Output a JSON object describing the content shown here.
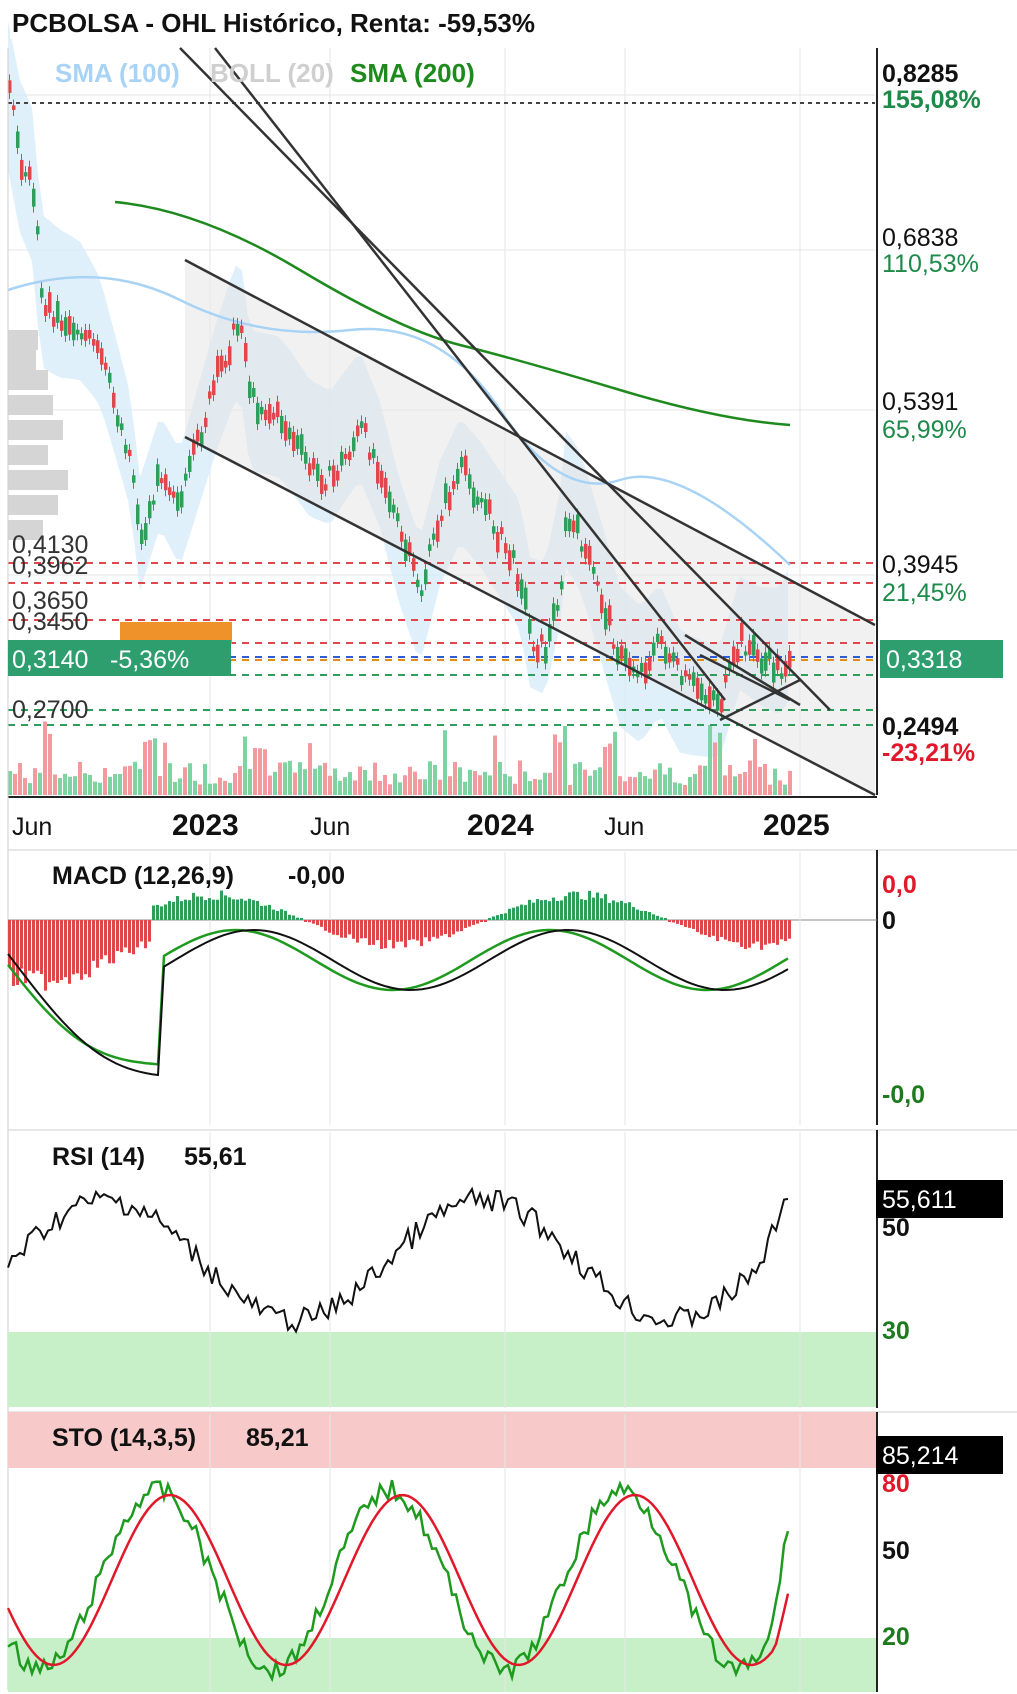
{
  "title": "PCBOLSA - OHL Histórico, Renta: -59,53%",
  "legend": [
    {
      "label": "SMA (100)",
      "color": "#a9d3f5"
    },
    {
      "label": "BOLL (20)",
      "color": "#cfcfcf"
    },
    {
      "label": "SMA (200)",
      "color": "#1e8a1e"
    }
  ],
  "colors": {
    "up": "#2e9e5b",
    "down": "#e0474c",
    "green": "#1a7a1a",
    "red": "#e0182a",
    "price_box": "#2e9e6f",
    "fill_up": "#c8f0c8",
    "fill_down": "#f7c9c9"
  },
  "right_axis": [
    {
      "price": "0,8285",
      "pct": "155,08%",
      "pct_color": "#1e8a4a",
      "bold": true
    },
    {
      "price": "0,6838",
      "pct": "110,53%",
      "pct_color": "#1e8a4a",
      "bold": false
    },
    {
      "price": "0,5391",
      "pct": "65,99%",
      "pct_color": "#1e8a4a",
      "bold": false
    },
    {
      "price": "0,3945",
      "pct": "21,45%",
      "pct_color": "#1e8a4a",
      "bold": false
    },
    {
      "price": "0,2494",
      "pct": "-23,21%",
      "pct_color": "#e0182a",
      "bold": true
    }
  ],
  "current_price": "0,3318",
  "left_levels": [
    "0,4130",
    "0,3962",
    "0,3650",
    "0,3450",
    "0,2700"
  ],
  "last_price_box": {
    "price": "0,3140",
    "pct": "-5,36%"
  },
  "x_axis": [
    {
      "label": "Jun",
      "bold": false
    },
    {
      "label": "2023",
      "bold": true
    },
    {
      "label": "Jun",
      "bold": false
    },
    {
      "label": "2024",
      "bold": true
    },
    {
      "label": "Jun",
      "bold": false
    },
    {
      "label": "2025",
      "bold": true
    }
  ],
  "macd": {
    "label": "MACD (12,26,9)",
    "value": "-0,00",
    "axis": [
      "0,0",
      "0",
      "-0,0"
    ]
  },
  "rsi": {
    "label": "RSI (14)",
    "value": "55,61",
    "badge": "55,611",
    "axis": [
      "50",
      "30"
    ]
  },
  "sto": {
    "label": "STO (14,3,5)",
    "value": "85,21",
    "badge": "85,214",
    "axis": [
      "80",
      "50",
      "20"
    ]
  },
  "chart_data": [
    {
      "type": "candlestick",
      "title": "PCBOLSA - OHL Histórico, Renta: -59,53%",
      "x_range": [
        "2022-04",
        "2025-01"
      ],
      "ylim": [
        0.2,
        0.86
      ],
      "close_approx": {
        "x": [
          "2022-04",
          "2022-05",
          "2022-06",
          "2022-07",
          "2022-08",
          "2022-09",
          "2022-10",
          "2022-11",
          "2022-12",
          "2023-01",
          "2023-02",
          "2023-03",
          "2023-04",
          "2023-05",
          "2023-06",
          "2023-07",
          "2023-08",
          "2023-09",
          "2023-10",
          "2023-11",
          "2023-12",
          "2024-01",
          "2024-02",
          "2024-03",
          "2024-04",
          "2024-05",
          "2024-06",
          "2024-07",
          "2024-08",
          "2024-09",
          "2024-10",
          "2024-11",
          "2024-12",
          "2025-01"
        ],
        "y": [
          0.8,
          0.74,
          0.64,
          0.6,
          0.56,
          0.5,
          0.42,
          0.46,
          0.48,
          0.52,
          0.56,
          0.6,
          0.54,
          0.5,
          0.47,
          0.46,
          0.48,
          0.5,
          0.44,
          0.4,
          0.44,
          0.48,
          0.44,
          0.42,
          0.38,
          0.34,
          0.4,
          0.44,
          0.38,
          0.34,
          0.3,
          0.3,
          0.28,
          0.3318
        ]
      },
      "sma200_approx": {
        "x": [
          "2022-08",
          "2022-12",
          "2023-06",
          "2023-12",
          "2024-06",
          "2024-12"
        ],
        "y": [
          0.7,
          0.68,
          0.63,
          0.58,
          0.56,
          0.54
        ]
      },
      "levels": [
        0.413,
        0.3962,
        0.365,
        0.345,
        0.314,
        0.27
      ],
      "right_ticks": [
        0.8285,
        0.6838,
        0.5391,
        0.3945,
        0.2494
      ],
      "last": 0.3318
    },
    {
      "type": "bar",
      "title": "MACD (12,26,9)",
      "value": -0.0
    },
    {
      "type": "line",
      "title": "RSI (14)",
      "value": 55.61,
      "ylim": [
        0,
        100
      ],
      "zones": [
        30,
        50
      ]
    },
    {
      "type": "line",
      "title": "STO (14,3,5)",
      "value": 85.21,
      "ylim": [
        0,
        100
      ],
      "zones": [
        20,
        50,
        80
      ]
    }
  ]
}
